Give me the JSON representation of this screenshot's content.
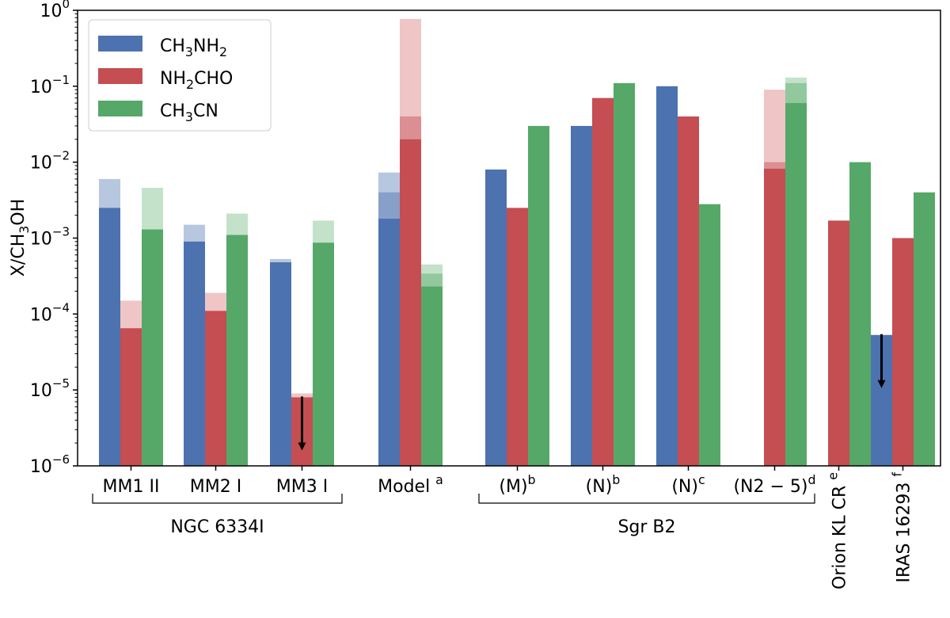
{
  "chart_data": {
    "type": "bar",
    "yscale": "log",
    "ylim": [
      1e-06,
      1
    ],
    "ylabel_main": "X/CH",
    "ylabel_sub": "3",
    "ylabel_tail": "OH",
    "legend_position": "upper-left",
    "series": [
      {
        "name_parts": [
          [
            "CH",
            ""
          ],
          [
            "3",
            "sub"
          ],
          [
            "NH",
            ""
          ],
          [
            "2",
            "sub"
          ]
        ],
        "color": "#4c72b0",
        "light_color": "#b8c7e0"
      },
      {
        "name_parts": [
          [
            "NH",
            ""
          ],
          [
            "2",
            "sub"
          ],
          [
            "CHO",
            ""
          ]
        ],
        "color": "#c44e52",
        "light_color": "#efc5c6"
      },
      {
        "name_parts": [
          [
            "CH",
            ""
          ],
          [
            "3",
            "sub"
          ],
          [
            "CN",
            ""
          ]
        ],
        "color": "#55a868",
        "light_color": "#c3e2c9"
      }
    ],
    "groups": [
      {
        "label": "MM1 II",
        "sup": "",
        "bars": [
          {
            "series": 0,
            "value": 0.0025,
            "upper": 0.006
          },
          {
            "series": 1,
            "value": 6.5e-05,
            "upper": 0.00015
          },
          {
            "series": 2,
            "value": 0.0013,
            "upper": 0.0046
          }
        ]
      },
      {
        "label": "MM2 I",
        "sup": "",
        "bars": [
          {
            "series": 0,
            "value": 0.0009,
            "upper": 0.0015
          },
          {
            "series": 1,
            "value": 0.00011,
            "upper": 0.00019
          },
          {
            "series": 2,
            "value": 0.0011,
            "upper": 0.0021
          }
        ]
      },
      {
        "label": "MM3 I",
        "sup": "",
        "bars": [
          {
            "series": 0,
            "value": 0.00048,
            "upper": 0.00053
          },
          {
            "series": 1,
            "value": 8e-06,
            "upper": 9e-06,
            "arrow": true
          },
          {
            "series": 2,
            "value": 0.00087,
            "upper": 0.0017
          }
        ]
      },
      {
        "label": "Model ",
        "sup": "a",
        "bars": [
          {
            "series": 0,
            "value": 0.0018,
            "mid": 0.004,
            "upper": 0.0073
          },
          {
            "series": 1,
            "value": 0.02,
            "mid": 0.04,
            "upper": 0.77
          },
          {
            "series": 2,
            "value": 0.00023,
            "mid": 0.00034,
            "upper": 0.00045
          }
        ]
      },
      {
        "label": "(M)",
        "sup": "b",
        "bars": [
          {
            "series": 0,
            "value": 0.008
          },
          {
            "series": 1,
            "value": 0.0025
          },
          {
            "series": 2,
            "value": 0.03
          }
        ]
      },
      {
        "label": "(N)",
        "sup": "b",
        "bars": [
          {
            "series": 0,
            "value": 0.03
          },
          {
            "series": 1,
            "value": 0.07
          },
          {
            "series": 2,
            "value": 0.11
          }
        ]
      },
      {
        "label": "(N)",
        "sup": "c",
        "bars": [
          {
            "series": 0,
            "value": 0.1
          },
          {
            "series": 1,
            "value": 0.04
          },
          {
            "series": 2,
            "value": 0.0028
          }
        ]
      },
      {
        "label": "(N2 − 5)",
        "sup": "d",
        "bars": [
          {
            "series": 1,
            "value": 0.0082,
            "mid": 0.01,
            "upper": 0.09
          },
          {
            "series": 2,
            "value": 0.06,
            "mid": 0.11,
            "upper": 0.13
          }
        ]
      },
      {
        "label": "Orion KL CR ",
        "sup": "e",
        "rotated": true,
        "bars": [
          {
            "series": 1,
            "value": 0.0017
          },
          {
            "series": 2,
            "value": 0.01
          }
        ]
      },
      {
        "label": "IRAS 16293 ",
        "sup": "f",
        "rotated": true,
        "bars": [
          {
            "series": 0,
            "value": 5.3e-05,
            "arrow": true
          },
          {
            "series": 1,
            "value": 0.001
          },
          {
            "series": 2,
            "value": 0.004
          }
        ]
      }
    ],
    "brackets": [
      {
        "label": "NGC 6334I",
        "from_group": 0,
        "to_group": 2
      },
      {
        "label": "Sgr B2",
        "from_group": 4,
        "to_group": 7
      }
    ],
    "yticks": [
      {
        "value": 1e-06,
        "exp": "−6"
      },
      {
        "value": 1e-05,
        "exp": "−5"
      },
      {
        "value": 0.0001,
        "exp": "−4"
      },
      {
        "value": 0.001,
        "exp": "−3"
      },
      {
        "value": 0.01,
        "exp": "−2"
      },
      {
        "value": 0.1,
        "exp": "−1"
      },
      {
        "value": 1,
        "exp": "0"
      }
    ]
  }
}
